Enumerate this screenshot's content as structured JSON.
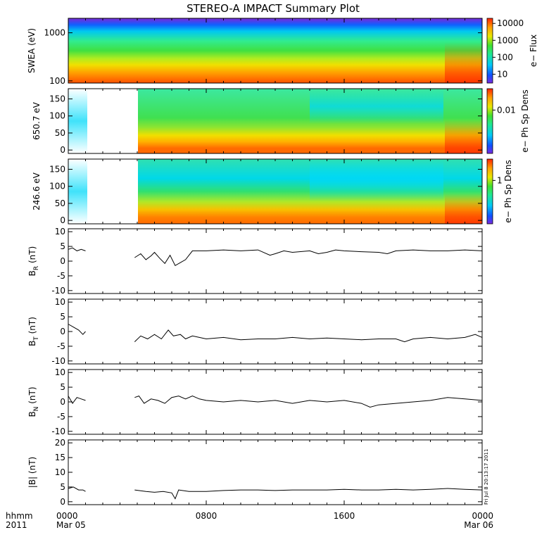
{
  "title": "STEREO-A IMPACT Summary Plot",
  "time_axis": {
    "label_line1": "hhmm",
    "label_line2": "2011",
    "ticks": [
      {
        "hours": 0,
        "label": "0000",
        "date": "Mar 05"
      },
      {
        "hours": 8,
        "label": "0800",
        "date": ""
      },
      {
        "hours": 16,
        "label": "1600",
        "date": ""
      },
      {
        "hours": 24,
        "label": "0000",
        "date": "Mar 06"
      }
    ]
  },
  "stamp": "Fri Jul  8 20:13:17 2011",
  "chart_data": [
    {
      "type": "heatmap",
      "ylabel": "SWEA (eV)",
      "ylog": true,
      "yticks": [
        {
          "value": 1000,
          "label": "1000"
        },
        {
          "value": 100,
          "label": "100"
        }
      ],
      "ylim": [
        90,
        2000
      ],
      "colorbar": {
        "label": "e− Flux",
        "scale": "log",
        "range": [
          3,
          20000
        ],
        "ticks": [
          {
            "value": 10,
            "label": "10"
          },
          {
            "value": 100,
            "label": "100"
          },
          {
            "value": 1000,
            "label": "1000"
          },
          {
            "value": 10000,
            "label": "10000"
          }
        ]
      }
    },
    {
      "type": "heatmap",
      "ylabel": "650.7 eV",
      "yticks": [
        {
          "value": 0,
          "label": "0"
        },
        {
          "value": 50,
          "label": "50"
        },
        {
          "value": 100,
          "label": "100"
        },
        {
          "value": 150,
          "label": "150"
        }
      ],
      "ylim": [
        -10,
        180
      ],
      "data_gaps_hours": [
        [
          1.1,
          3.85
        ]
      ],
      "colorbar": {
        "label": "e− Ph Sp Dens",
        "scale": "log",
        "ticks": [
          {
            "value": 0.01,
            "label": "0.01"
          }
        ]
      }
    },
    {
      "type": "heatmap",
      "ylabel": "246.6 eV",
      "yticks": [
        {
          "value": 0,
          "label": "0"
        },
        {
          "value": 50,
          "label": "50"
        },
        {
          "value": 100,
          "label": "100"
        },
        {
          "value": 150,
          "label": "150"
        }
      ],
      "ylim": [
        -10,
        180
      ],
      "data_gaps_hours": [
        [
          1.1,
          3.85
        ]
      ],
      "colorbar": {
        "label": "e− Ph Sp Dens",
        "scale": "log",
        "ticks": [
          {
            "value": 1,
            "label": "1"
          }
        ]
      }
    },
    {
      "type": "line",
      "ylabel": "B",
      "ylabel_sub": "R",
      "ylabel_unit": " (nT)",
      "ylim": [
        -11,
        11
      ],
      "yticks": [
        -10,
        -5,
        0,
        5,
        10
      ],
      "gaps_hours": [
        [
          1.1,
          3.85
        ]
      ],
      "points": [
        [
          0,
          4.0
        ],
        [
          0.25,
          4.5
        ],
        [
          0.5,
          3.5
        ],
        [
          0.75,
          4.0
        ],
        [
          1.0,
          3.5
        ],
        [
          3.85,
          1.2
        ],
        [
          4.2,
          2.5
        ],
        [
          4.5,
          0.5
        ],
        [
          4.8,
          1.8
        ],
        [
          5.0,
          3.0
        ],
        [
          5.3,
          1.0
        ],
        [
          5.6,
          -0.8
        ],
        [
          5.9,
          2.0
        ],
        [
          6.2,
          -1.5
        ],
        [
          6.5,
          -0.5
        ],
        [
          6.8,
          0.5
        ],
        [
          7.2,
          3.5
        ],
        [
          8,
          3.5
        ],
        [
          9,
          3.8
        ],
        [
          10,
          3.5
        ],
        [
          11,
          3.8
        ],
        [
          11.7,
          2.0
        ],
        [
          12,
          2.5
        ],
        [
          12.5,
          3.5
        ],
        [
          13,
          3.0
        ],
        [
          14,
          3.5
        ],
        [
          14.5,
          2.5
        ],
        [
          15,
          3.0
        ],
        [
          15.5,
          3.8
        ],
        [
          16,
          3.5
        ],
        [
          17,
          3.2
        ],
        [
          18,
          3.0
        ],
        [
          18.5,
          2.5
        ],
        [
          19,
          3.5
        ],
        [
          20,
          3.8
        ],
        [
          21,
          3.5
        ],
        [
          22,
          3.5
        ],
        [
          23,
          3.8
        ],
        [
          24,
          3.5
        ]
      ]
    },
    {
      "type": "line",
      "ylabel": "B",
      "ylabel_sub": "T",
      "ylabel_unit": " (nT)",
      "ylim": [
        -11,
        11
      ],
      "yticks": [
        -10,
        -5,
        0,
        5,
        10
      ],
      "gaps_hours": [
        [
          1.1,
          3.85
        ]
      ],
      "points": [
        [
          0,
          2.5
        ],
        [
          0.3,
          1.5
        ],
        [
          0.6,
          0.5
        ],
        [
          0.85,
          -1.0
        ],
        [
          1.0,
          0.0
        ],
        [
          3.85,
          -3.5
        ],
        [
          4.2,
          -1.5
        ],
        [
          4.6,
          -2.5
        ],
        [
          5.0,
          -1.0
        ],
        [
          5.4,
          -2.5
        ],
        [
          5.8,
          0.5
        ],
        [
          6.1,
          -1.5
        ],
        [
          6.5,
          -1.0
        ],
        [
          6.8,
          -2.5
        ],
        [
          7.2,
          -1.5
        ],
        [
          7.6,
          -2.0
        ],
        [
          8,
          -2.5
        ],
        [
          9,
          -2.0
        ],
        [
          10,
          -2.8
        ],
        [
          11,
          -2.5
        ],
        [
          12,
          -2.5
        ],
        [
          13,
          -2.0
        ],
        [
          14,
          -2.5
        ],
        [
          15,
          -2.2
        ],
        [
          16,
          -2.5
        ],
        [
          17,
          -2.8
        ],
        [
          18,
          -2.5
        ],
        [
          19,
          -2.5
        ],
        [
          19.5,
          -3.5
        ],
        [
          20,
          -2.5
        ],
        [
          21,
          -2.0
        ],
        [
          22,
          -2.5
        ],
        [
          23,
          -2.0
        ],
        [
          23.6,
          -1.0
        ],
        [
          24,
          -2.0
        ]
      ]
    },
    {
      "type": "line",
      "ylabel": "B",
      "ylabel_sub": "N",
      "ylabel_unit": " (nT)",
      "ylim": [
        -11,
        11
      ],
      "yticks": [
        -10,
        -5,
        0,
        5,
        10
      ],
      "gaps_hours": [
        [
          1.1,
          3.85
        ]
      ],
      "points": [
        [
          0,
          2.0
        ],
        [
          0.25,
          -0.5
        ],
        [
          0.5,
          1.5
        ],
        [
          0.75,
          1.0
        ],
        [
          1.0,
          0.5
        ],
        [
          3.85,
          1.5
        ],
        [
          4.1,
          2.0
        ],
        [
          4.4,
          -0.5
        ],
        [
          4.8,
          1.0
        ],
        [
          5.2,
          0.5
        ],
        [
          5.6,
          -0.5
        ],
        [
          6.0,
          1.5
        ],
        [
          6.4,
          2.0
        ],
        [
          6.8,
          1.0
        ],
        [
          7.2,
          2.0
        ],
        [
          7.6,
          1.0
        ],
        [
          8,
          0.5
        ],
        [
          9,
          0.0
        ],
        [
          10,
          0.5
        ],
        [
          11,
          0.0
        ],
        [
          12,
          0.5
        ],
        [
          13,
          -0.5
        ],
        [
          14,
          0.5
        ],
        [
          15,
          0.0
        ],
        [
          16,
          0.5
        ],
        [
          17,
          -0.5
        ],
        [
          17.5,
          -1.8
        ],
        [
          18,
          -1.0
        ],
        [
          19,
          -0.5
        ],
        [
          20,
          0.0
        ],
        [
          21,
          0.5
        ],
        [
          22,
          1.5
        ],
        [
          23,
          1.0
        ],
        [
          24,
          0.5
        ]
      ]
    },
    {
      "type": "line",
      "ylabel": "|B| (nT)",
      "ylim": [
        -1,
        21
      ],
      "yticks": [
        0,
        5,
        10,
        15,
        20
      ],
      "gaps_hours": [
        [
          1.1,
          3.85
        ]
      ],
      "points": [
        [
          0,
          4.5
        ],
        [
          0.3,
          5.0
        ],
        [
          0.6,
          4.0
        ],
        [
          0.85,
          4.0
        ],
        [
          1.0,
          3.5
        ],
        [
          3.85,
          4.0
        ],
        [
          4.5,
          3.5
        ],
        [
          5.0,
          3.2
        ],
        [
          5.5,
          3.5
        ],
        [
          6.0,
          3.0
        ],
        [
          6.2,
          1.0
        ],
        [
          6.4,
          4.0
        ],
        [
          7,
          3.5
        ],
        [
          8,
          3.5
        ],
        [
          9,
          3.8
        ],
        [
          10,
          4.0
        ],
        [
          11,
          4.0
        ],
        [
          12,
          3.8
        ],
        [
          13,
          4.0
        ],
        [
          14,
          4.0
        ],
        [
          15,
          4.0
        ],
        [
          16,
          4.2
        ],
        [
          17,
          4.0
        ],
        [
          18,
          4.0
        ],
        [
          19,
          4.2
        ],
        [
          20,
          4.0
        ],
        [
          21,
          4.2
        ],
        [
          22,
          4.5
        ],
        [
          23,
          4.2
        ],
        [
          24,
          4.0
        ]
      ]
    }
  ]
}
